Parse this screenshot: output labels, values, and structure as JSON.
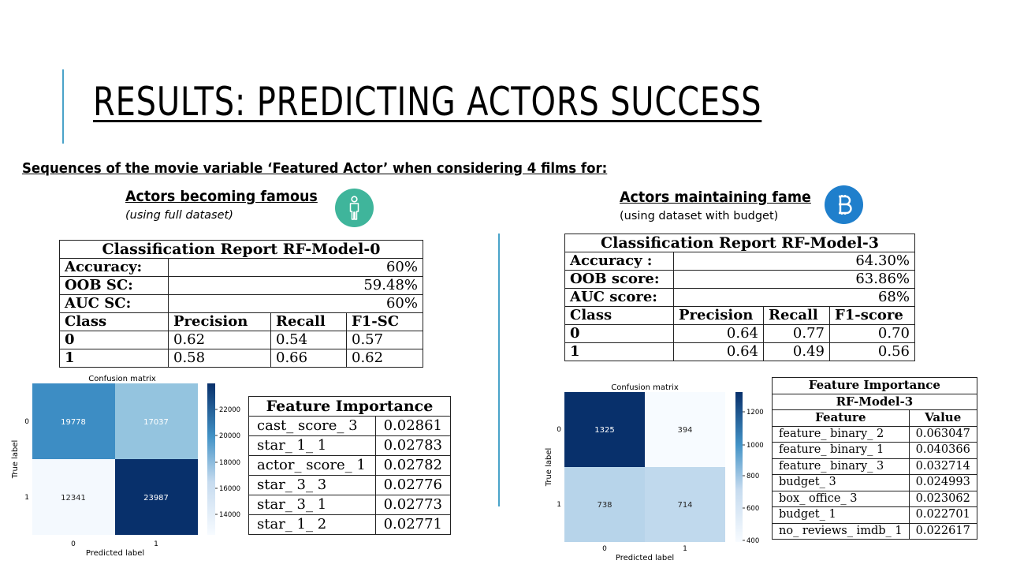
{
  "slide": {
    "title": "RESULTS: PREDICTING ACTORS SUCCESS",
    "subtitle": "Sequences of the movie variable ‘Featured Actor’ when considering 4 films for:"
  },
  "left": {
    "heading": "Actors becoming famous",
    "note": "(using full dataset)",
    "badge": {
      "icon": "person-icon",
      "color": "#3fb59b"
    },
    "report": {
      "title": "Classification Report RF-Model-0",
      "rows": [
        {
          "label": "Accuracy:",
          "value": "60%"
        },
        {
          "label": "OOB SC:",
          "value": "59.48%"
        },
        {
          "label": "AUC SC:",
          "value": "60%"
        }
      ],
      "columns": [
        "Class",
        "Precision",
        "Recall",
        "F1-SC"
      ],
      "classes": [
        {
          "class": "0",
          "precision": "0.62",
          "recall": "0.54",
          "f1": "0.57"
        },
        {
          "class": "1",
          "precision": "0.58",
          "recall": "0.66",
          "f1": "0.62"
        }
      ]
    },
    "matrix": {
      "title": "Confusion matrix",
      "xlabel": "Predicted label",
      "ylabel": "True label",
      "xticks": [
        "0",
        "1"
      ],
      "yticks": [
        "0",
        "1"
      ],
      "values": [
        [
          19778,
          17037
        ],
        [
          12341,
          23987
        ]
      ],
      "colorbar": {
        "min": 12341,
        "max": 23987,
        "ticks": [
          "22000",
          "20000",
          "18000",
          "16000",
          "14000"
        ]
      }
    },
    "importance": {
      "title": "Feature Importance",
      "rows": [
        {
          "feature": "cast_ score_ 3",
          "value": "0.02861"
        },
        {
          "feature": "star_ 1_ 1",
          "value": "0.02783"
        },
        {
          "feature": "actor_ score_ 1",
          "value": "0.02782"
        },
        {
          "feature": "star_ 3_ 3",
          "value": "0.02776"
        },
        {
          "feature": "star_ 3_ 1",
          "value": "0.02773"
        },
        {
          "feature": "star_ 1_ 2",
          "value": "0.02771"
        }
      ]
    }
  },
  "right": {
    "heading": "Actors maintaining fame",
    "note": "(using dataset with budget)",
    "badge": {
      "icon": "bitcoin-icon",
      "color": "#1f7fcc"
    },
    "report": {
      "title": "Classification Report RF-Model-3",
      "rows": [
        {
          "label": "Accuracy :",
          "value": "64.30%"
        },
        {
          "label": "OOB score:",
          "value": "63.86%"
        },
        {
          "label": "AUC score:",
          "value": "68%"
        }
      ],
      "columns": [
        "Class",
        "Precision",
        "Recall",
        "F1-score"
      ],
      "classes": [
        {
          "class": "0",
          "precision": "0.64",
          "recall": "0.77",
          "f1": "0.70"
        },
        {
          "class": "1",
          "precision": "0.64",
          "recall": "0.49",
          "f1": "0.56"
        }
      ]
    },
    "matrix": {
      "title": "Confusion matrix",
      "xlabel": "Predicted label",
      "ylabel": "True label",
      "xticks": [
        "0",
        "1"
      ],
      "yticks": [
        "0",
        "1"
      ],
      "values": [
        [
          1325,
          394
        ],
        [
          738,
          714
        ]
      ],
      "colorbar": {
        "min": 394,
        "max": 1325,
        "ticks": [
          "1200",
          "1000",
          "800",
          "600",
          "400"
        ]
      }
    },
    "importance": {
      "title": "Feature Importance",
      "subtitle": "RF-Model-3",
      "columns": [
        "Feature",
        "Value"
      ],
      "rows": [
        {
          "feature": "feature_ binary_ 2",
          "value": "0.063047"
        },
        {
          "feature": "feature_ binary_ 1",
          "value": "0.040366"
        },
        {
          "feature": "feature_ binary_ 3",
          "value": "0.032714"
        },
        {
          "feature": "budget_ 3",
          "value": "0.024993"
        },
        {
          "feature": "box_ office_ 3",
          "value": "0.023062"
        },
        {
          "feature": "budget_ 1",
          "value": "0.022701"
        },
        {
          "feature": "no_ reviews_ imdb_ 1",
          "value": "0.022617"
        }
      ]
    }
  }
}
